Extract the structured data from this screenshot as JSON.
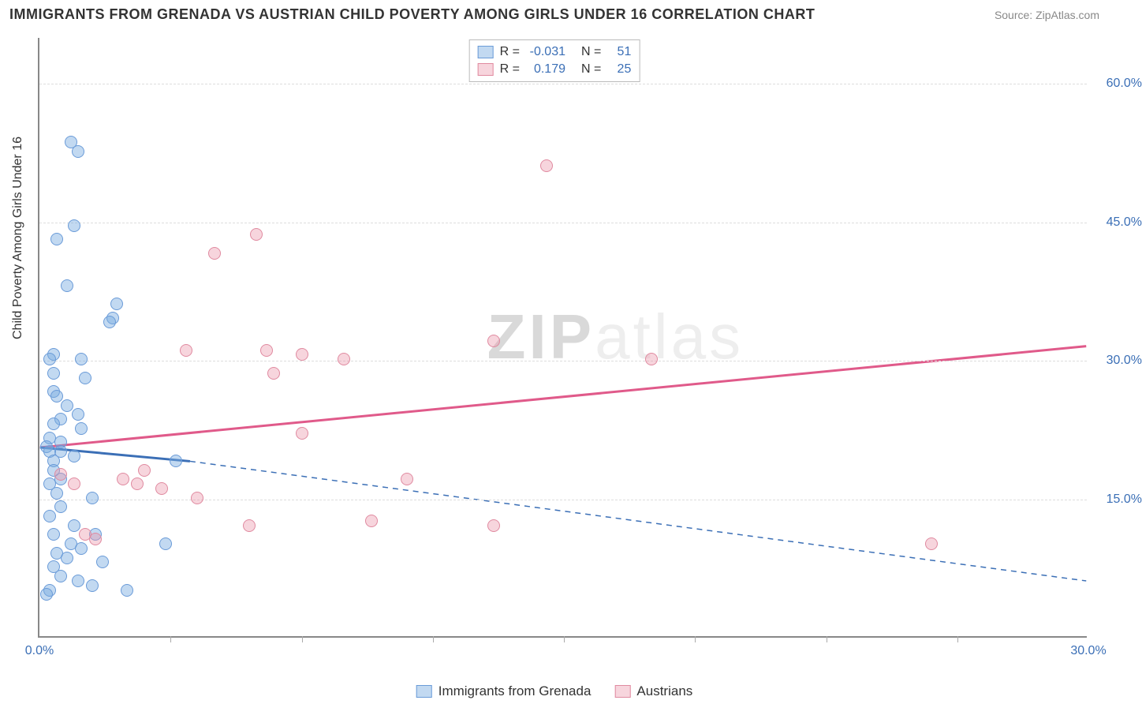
{
  "header": {
    "title": "IMMIGRANTS FROM GRENADA VS AUSTRIAN CHILD POVERTY AMONG GIRLS UNDER 16 CORRELATION CHART",
    "source": "Source: ZipAtlas.com"
  },
  "chart": {
    "type": "scatter",
    "ylabel": "Child Poverty Among Girls Under 16",
    "xlim": [
      0,
      30
    ],
    "ylim": [
      0,
      65
    ],
    "yticks": [
      {
        "value": 15,
        "label": "15.0%"
      },
      {
        "value": 30,
        "label": "30.0%"
      },
      {
        "value": 45,
        "label": "45.0%"
      },
      {
        "value": 60,
        "label": "60.0%"
      }
    ],
    "xticks_minor": [
      3.75,
      7.5,
      11.25,
      15,
      18.75,
      22.5,
      26.25
    ],
    "xticks_labeled": [
      {
        "value": 0,
        "label": "0.0%"
      },
      {
        "value": 30,
        "label": "30.0%"
      }
    ],
    "marker_radius": 8,
    "colors": {
      "series_a_fill": "rgba(120,170,225,0.45)",
      "series_a_stroke": "#6a9bd8",
      "series_b_fill": "rgba(235,150,170,0.40)",
      "series_b_stroke": "#e08aa0",
      "trend_a": "#3b6fb6",
      "trend_b": "#e05a8a",
      "grid": "#dddddd",
      "axis": "#888888",
      "tick_text": "#3b6fb6",
      "text": "#333333",
      "background": "#ffffff"
    },
    "trend_lines": {
      "a_solid": {
        "x1": 0,
        "y1": 20.5,
        "x2": 4.3,
        "y2": 19.0
      },
      "a_dashed": {
        "x1": 4.3,
        "y1": 19.0,
        "x2": 30,
        "y2": 6.0
      },
      "b": {
        "x1": 0,
        "y1": 20.5,
        "x2": 30,
        "y2": 31.5
      }
    },
    "series_a": {
      "name": "Immigrants from Grenada",
      "points": [
        [
          0.9,
          53.5
        ],
        [
          1.1,
          52.5
        ],
        [
          1.0,
          44.5
        ],
        [
          0.5,
          43.0
        ],
        [
          0.8,
          38.0
        ],
        [
          2.2,
          36.0
        ],
        [
          2.1,
          34.5
        ],
        [
          2.0,
          34.0
        ],
        [
          0.4,
          30.5
        ],
        [
          1.2,
          30.0
        ],
        [
          0.3,
          30.0
        ],
        [
          0.4,
          28.5
        ],
        [
          1.3,
          28.0
        ],
        [
          0.4,
          26.5
        ],
        [
          0.5,
          26.0
        ],
        [
          0.8,
          25.0
        ],
        [
          1.1,
          24.0
        ],
        [
          0.6,
          23.5
        ],
        [
          0.4,
          23.0
        ],
        [
          1.2,
          22.5
        ],
        [
          0.3,
          21.5
        ],
        [
          0.6,
          21.0
        ],
        [
          0.2,
          20.5
        ],
        [
          0.6,
          20.0
        ],
        [
          0.3,
          20.0
        ],
        [
          1.0,
          19.5
        ],
        [
          0.4,
          19.0
        ],
        [
          3.9,
          19.0
        ],
        [
          0.4,
          18.0
        ],
        [
          0.6,
          17.0
        ],
        [
          0.3,
          16.5
        ],
        [
          0.5,
          15.5
        ],
        [
          1.5,
          15.0
        ],
        [
          0.6,
          14.0
        ],
        [
          0.3,
          13.0
        ],
        [
          1.0,
          12.0
        ],
        [
          1.6,
          11.0
        ],
        [
          0.4,
          11.0
        ],
        [
          0.9,
          10.0
        ],
        [
          1.2,
          9.5
        ],
        [
          0.5,
          9.0
        ],
        [
          0.8,
          8.5
        ],
        [
          1.8,
          8.0
        ],
        [
          3.6,
          10.0
        ],
        [
          0.6,
          6.5
        ],
        [
          1.1,
          6.0
        ],
        [
          1.5,
          5.5
        ],
        [
          2.5,
          5.0
        ],
        [
          0.3,
          5.0
        ],
        [
          0.2,
          4.5
        ],
        [
          0.4,
          7.5
        ]
      ]
    },
    "series_b": {
      "name": "Austrians",
      "points": [
        [
          6.2,
          43.5
        ],
        [
          5.0,
          41.5
        ],
        [
          14.5,
          51.0
        ],
        [
          6.5,
          31.0
        ],
        [
          4.2,
          31.0
        ],
        [
          7.5,
          30.5
        ],
        [
          8.7,
          30.0
        ],
        [
          13.0,
          32.0
        ],
        [
          17.5,
          30.0
        ],
        [
          6.7,
          28.5
        ],
        [
          7.5,
          22.0
        ],
        [
          3.0,
          18.0
        ],
        [
          2.4,
          17.0
        ],
        [
          2.8,
          16.5
        ],
        [
          3.5,
          16.0
        ],
        [
          4.5,
          15.0
        ],
        [
          10.5,
          17.0
        ],
        [
          6.0,
          12.0
        ],
        [
          9.5,
          12.5
        ],
        [
          13.0,
          12.0
        ],
        [
          25.5,
          10.0
        ],
        [
          1.3,
          11.0
        ],
        [
          1.6,
          10.5
        ],
        [
          1.0,
          16.5
        ],
        [
          0.6,
          17.5
        ]
      ]
    },
    "watermark": {
      "part1": "ZIP",
      "part2": "atlas"
    }
  },
  "legend_top": {
    "rows": [
      {
        "color_fill": "rgba(120,170,225,0.45)",
        "color_stroke": "#6a9bd8",
        "r_label": "R =",
        "r_value": "-0.031",
        "n_label": "N =",
        "n_value": "51"
      },
      {
        "color_fill": "rgba(235,150,170,0.40)",
        "color_stroke": "#e08aa0",
        "r_label": "R =",
        "r_value": "0.179",
        "n_label": "N =",
        "n_value": "25"
      }
    ]
  },
  "legend_bottom": {
    "items": [
      {
        "color_fill": "rgba(120,170,225,0.45)",
        "color_stroke": "#6a9bd8",
        "label": "Immigrants from Grenada"
      },
      {
        "color_fill": "rgba(235,150,170,0.40)",
        "color_stroke": "#e08aa0",
        "label": "Austrians"
      }
    ]
  }
}
